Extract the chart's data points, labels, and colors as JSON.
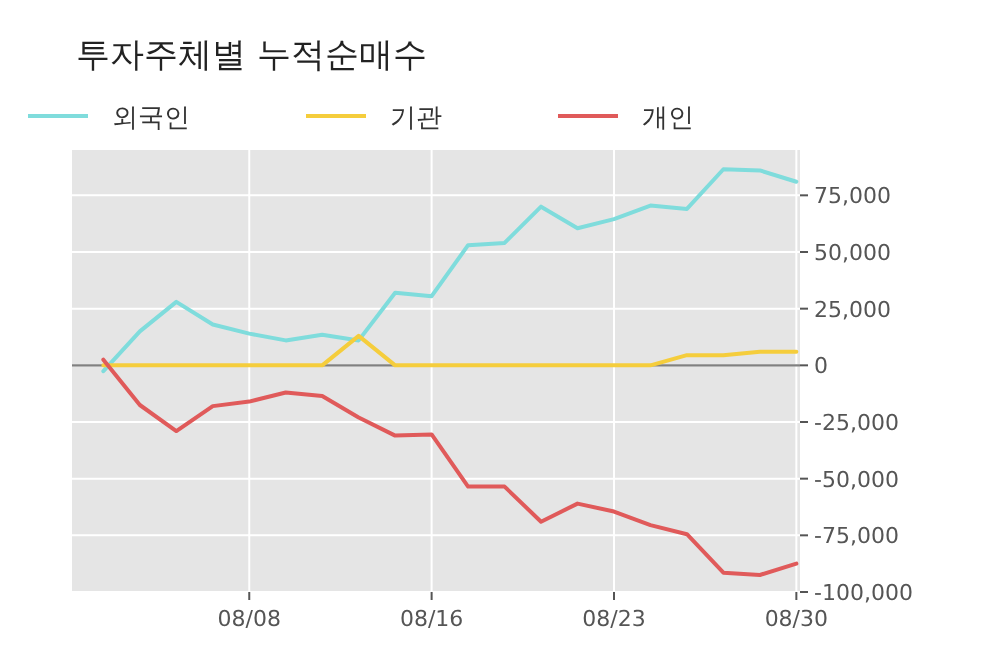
{
  "chart_data": {
    "type": "line",
    "title": "투자주체별 누적순매수",
    "categories": [
      null,
      null,
      null,
      null,
      "08/08",
      null,
      null,
      null,
      null,
      "08/16",
      null,
      null,
      null,
      null,
      "08/23",
      null,
      null,
      null,
      null,
      "08/30"
    ],
    "series": [
      {
        "name": "외국인",
        "color": "#7fdcdc",
        "values": [
          -2600,
          15000,
          28000,
          18000,
          14000,
          11000,
          13500,
          11000,
          32000,
          30500,
          53000,
          54000,
          70000,
          60500,
          64500,
          70500,
          69000,
          86500,
          86000,
          81000
        ]
      },
      {
        "name": "기관",
        "color": "#f5cd3c",
        "values": [
          0,
          0,
          0,
          0,
          0,
          0,
          0,
          13000,
          0,
          0,
          0,
          0,
          0,
          0,
          0,
          0,
          4500,
          4500,
          6000,
          6000
        ]
      },
      {
        "name": "개인",
        "color": "#e05a5a",
        "values": [
          2500,
          -17500,
          -29000,
          -18000,
          -16000,
          -12000,
          -13500,
          -23000,
          -31000,
          -30500,
          -53500,
          -53500,
          -69000,
          -61000,
          -64500,
          -70500,
          -74500,
          -91500,
          -92500,
          -87500
        ]
      }
    ],
    "ylim": [
      -100000,
      95000
    ],
    "yticks": [
      {
        "value": -100000,
        "label": "-100,000"
      },
      {
        "value": -75000,
        "label": "-75,000"
      },
      {
        "value": -50000,
        "label": "-50,000"
      },
      {
        "value": -25000,
        "label": "-25,000"
      },
      {
        "value": 0,
        "label": "0"
      },
      {
        "value": 25000,
        "label": "25,000"
      },
      {
        "value": 50000,
        "label": "50,000"
      },
      {
        "value": 75000,
        "label": "75,000"
      }
    ],
    "ref_lines": [
      {
        "axis": "y",
        "value": 0,
        "color": "#808080"
      }
    ],
    "grid": true,
    "legend": "top left",
    "marker": "none",
    "line_style": "solid"
  }
}
